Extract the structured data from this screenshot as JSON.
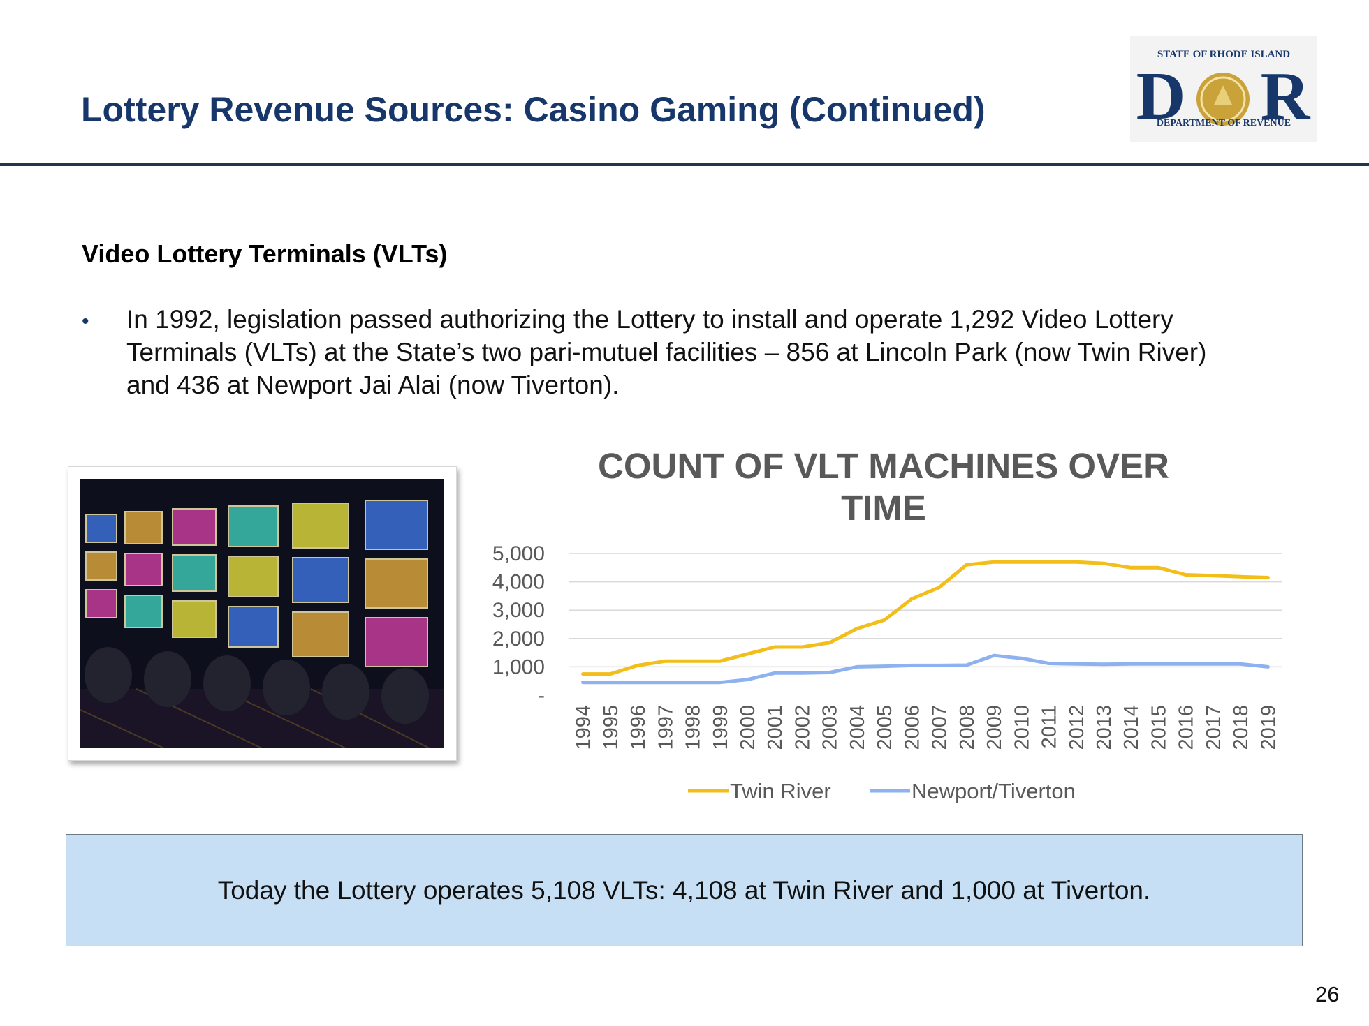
{
  "header": {
    "title": "Lottery Revenue Sources: Casino Gaming (Continued)",
    "logo": {
      "top_text": "STATE OF RHODE ISLAND",
      "letters": "DOR",
      "bottom_text": "DEPARTMENT OF REVENUE",
      "colors": {
        "navy": "#17376b",
        "gold": "#c9a23a"
      }
    }
  },
  "section": {
    "heading": "Video Lottery Terminals (VLTs)",
    "bullets": [
      "In 1992, legislation passed authorizing the Lottery to install and operate 1,292 Video Lottery Terminals (VLTs) at the State’s two pari-mutuel facilities – 856 at Lincoln Park (now Twin River) and 436 at Newport Jai Alai (now Tiverton)."
    ]
  },
  "chart_data": {
    "type": "line",
    "title": "COUNT OF VLT MACHINES OVER TIME",
    "x": [
      "1994",
      "1995",
      "1996",
      "1997",
      "1998",
      "1999",
      "2000",
      "2001",
      "2002",
      "2003",
      "2004",
      "2005",
      "2006",
      "2007",
      "2008",
      "2009",
      "2010",
      "2011",
      "2012",
      "2013",
      "2014",
      "2015",
      "2016",
      "2017",
      "2018",
      "2019"
    ],
    "series": [
      {
        "name": "Twin River",
        "color": "#f2bf1a",
        "values": [
          750,
          750,
          1050,
          1200,
          1200,
          1200,
          1450,
          1700,
          1700,
          1850,
          2350,
          2650,
          3400,
          3800,
          4600,
          4700,
          4700,
          4700,
          4700,
          4650,
          4500,
          4500,
          4250,
          4220,
          4180,
          4150
        ]
      },
      {
        "name": "Newport/Tiverton",
        "color": "#8eb1ef",
        "values": [
          450,
          450,
          450,
          450,
          450,
          450,
          550,
          780,
          780,
          800,
          1000,
          1020,
          1050,
          1050,
          1060,
          1400,
          1300,
          1120,
          1100,
          1090,
          1100,
          1100,
          1100,
          1100,
          1100,
          1000
        ]
      }
    ],
    "yticks": [
      0,
      1000,
      2000,
      3000,
      4000,
      5000
    ],
    "ytick_labels": [
      "-",
      "1,000",
      "2,000",
      "3,000",
      "4,000",
      "5,000"
    ],
    "ylim": [
      0,
      5000
    ],
    "grid": true,
    "legend": "bottom",
    "xlabel": "",
    "ylabel": ""
  },
  "callout": {
    "text": "Today the Lottery operates 5,108 VLTs: 4,108 at Twin River and 1,000 at Tiverton."
  },
  "page_number": "26"
}
